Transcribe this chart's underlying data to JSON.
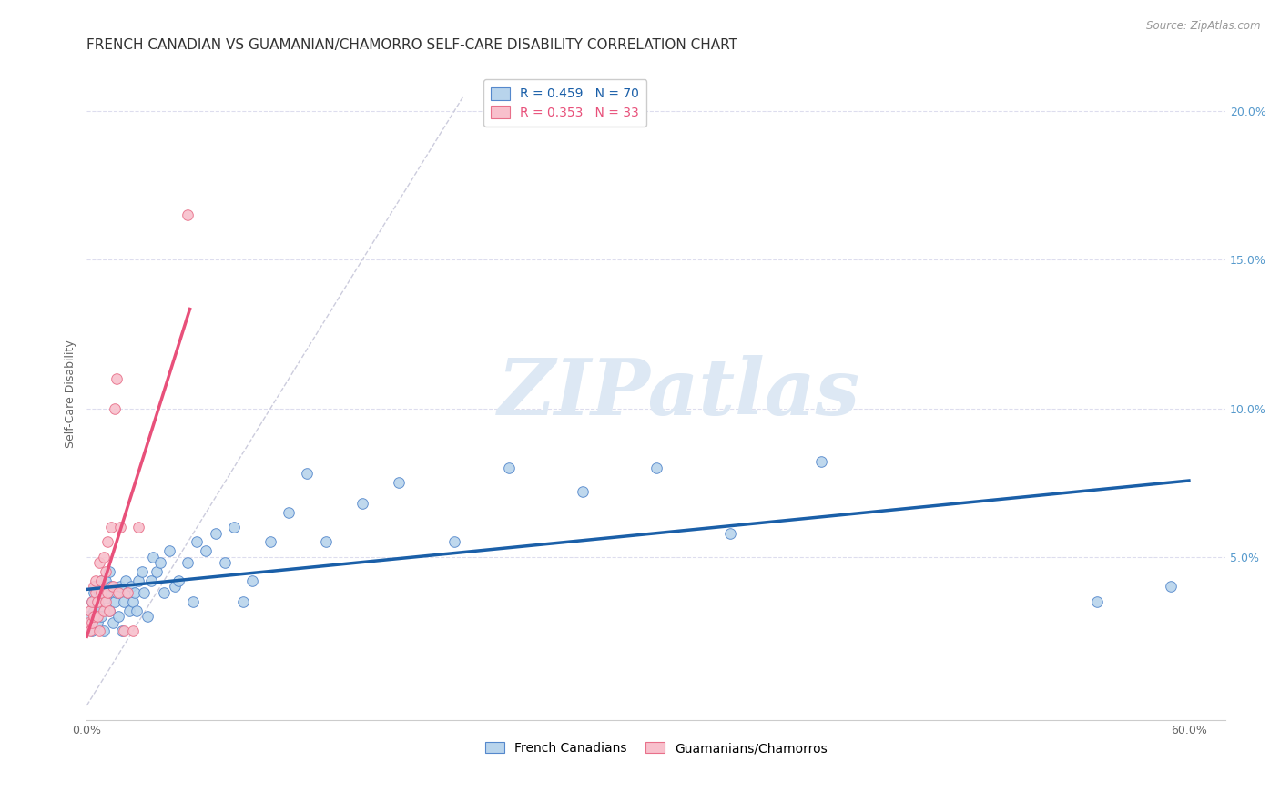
{
  "title": "FRENCH CANADIAN VS GUAMANIAN/CHAMORRO SELF-CARE DISABILITY CORRELATION CHART",
  "source": "Source: ZipAtlas.com",
  "ylabel": "Self-Care Disability",
  "xlim": [
    0,
    0.62
  ],
  "ylim": [
    -0.005,
    0.215
  ],
  "yticks_right": [
    0.05,
    0.1,
    0.15,
    0.2
  ],
  "yticklabels_right": [
    "5.0%",
    "10.0%",
    "15.0%",
    "20.0%"
  ],
  "blue_color": "#b8d4ec",
  "blue_edge_color": "#5588cc",
  "blue_line_color": "#1a5fa8",
  "pink_color": "#f8c0cc",
  "pink_edge_color": "#e8708a",
  "pink_line_color": "#e8507a",
  "diag_color": "#ccccdd",
  "grid_color": "#ddddee",
  "R_blue": 0.459,
  "N_blue": 70,
  "R_pink": 0.353,
  "N_pink": 33,
  "watermark": "ZIPatlas",
  "legend_label_blue": "French Canadians",
  "legend_label_pink": "Guamanians/Chamorros",
  "blue_scatter_x": [
    0.001,
    0.002,
    0.003,
    0.003,
    0.004,
    0.004,
    0.005,
    0.005,
    0.006,
    0.006,
    0.007,
    0.007,
    0.008,
    0.008,
    0.009,
    0.01,
    0.01,
    0.011,
    0.012,
    0.012,
    0.013,
    0.014,
    0.015,
    0.016,
    0.017,
    0.018,
    0.019,
    0.02,
    0.021,
    0.022,
    0.023,
    0.024,
    0.025,
    0.026,
    0.027,
    0.028,
    0.03,
    0.031,
    0.033,
    0.035,
    0.036,
    0.038,
    0.04,
    0.042,
    0.045,
    0.048,
    0.05,
    0.055,
    0.058,
    0.06,
    0.065,
    0.07,
    0.075,
    0.08,
    0.085,
    0.09,
    0.1,
    0.11,
    0.12,
    0.13,
    0.15,
    0.17,
    0.2,
    0.23,
    0.27,
    0.31,
    0.35,
    0.4,
    0.55,
    0.59
  ],
  "blue_scatter_y": [
    0.03,
    0.028,
    0.035,
    0.025,
    0.032,
    0.038,
    0.03,
    0.04,
    0.028,
    0.035,
    0.033,
    0.038,
    0.03,
    0.042,
    0.025,
    0.036,
    0.042,
    0.038,
    0.032,
    0.045,
    0.04,
    0.028,
    0.035,
    0.038,
    0.03,
    0.04,
    0.025,
    0.035,
    0.042,
    0.038,
    0.032,
    0.04,
    0.035,
    0.038,
    0.032,
    0.042,
    0.045,
    0.038,
    0.03,
    0.042,
    0.05,
    0.045,
    0.048,
    0.038,
    0.052,
    0.04,
    0.042,
    0.048,
    0.035,
    0.055,
    0.052,
    0.058,
    0.048,
    0.06,
    0.035,
    0.042,
    0.055,
    0.065,
    0.078,
    0.055,
    0.068,
    0.075,
    0.055,
    0.08,
    0.072,
    0.08,
    0.058,
    0.082,
    0.035,
    0.04
  ],
  "pink_scatter_x": [
    0.001,
    0.002,
    0.002,
    0.003,
    0.003,
    0.004,
    0.004,
    0.005,
    0.005,
    0.006,
    0.006,
    0.007,
    0.007,
    0.008,
    0.008,
    0.009,
    0.009,
    0.01,
    0.01,
    0.011,
    0.011,
    0.012,
    0.013,
    0.014,
    0.015,
    0.016,
    0.017,
    0.018,
    0.02,
    0.022,
    0.025,
    0.028,
    0.055
  ],
  "pink_scatter_y": [
    0.028,
    0.032,
    0.025,
    0.035,
    0.028,
    0.04,
    0.03,
    0.038,
    0.042,
    0.03,
    0.035,
    0.048,
    0.025,
    0.038,
    0.042,
    0.032,
    0.05,
    0.035,
    0.045,
    0.038,
    0.055,
    0.032,
    0.06,
    0.04,
    0.1,
    0.11,
    0.038,
    0.06,
    0.025,
    0.038,
    0.025,
    0.06,
    0.165
  ],
  "title_fontsize": 11,
  "axis_label_fontsize": 9,
  "tick_fontsize": 9,
  "legend_fontsize": 10
}
